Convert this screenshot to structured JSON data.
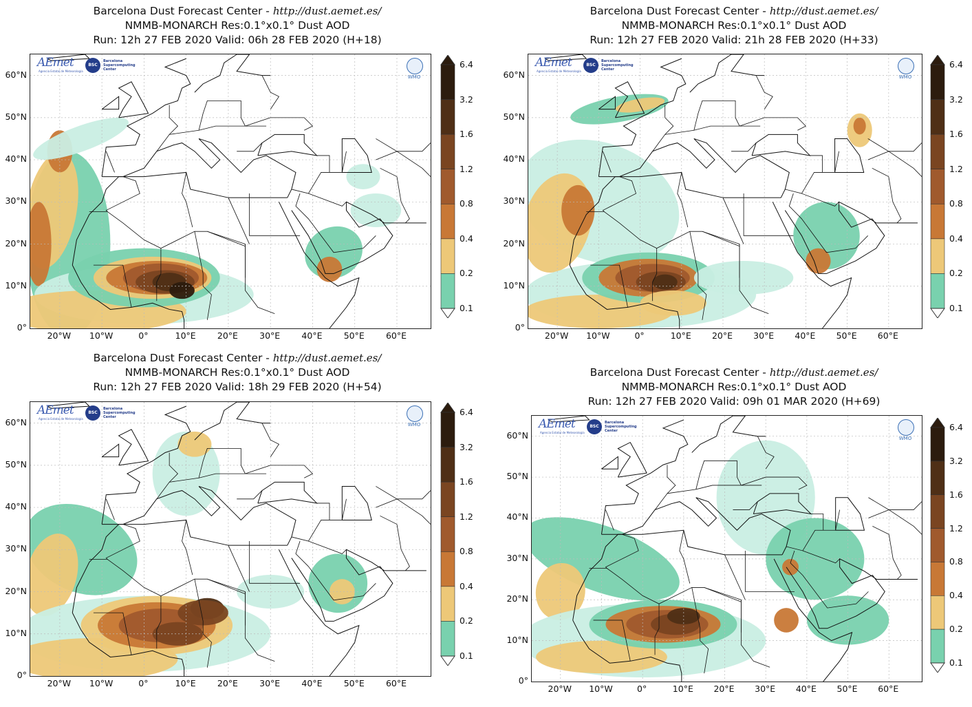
{
  "colors": {
    "c01": "#c9eee3",
    "c02": "#79d1ae",
    "c04": "#edc878",
    "c08": "#c87836",
    "c12": "#a05a2d",
    "c16": "#7a4521",
    "c32": "#4f2f16",
    "c64": "#2c1c0e",
    "land_line": "#111111",
    "grid": "#bbbbbb"
  },
  "common": {
    "center": "Barcelona Dust Forecast Center - ",
    "url": "http://dust.aemet.es/",
    "model": "NMMB-MONARCH   Res:0.1°x0.1°   Dust AOD",
    "logo_aemet": "AEmet",
    "logo_aemet_sub": "Agencia Estatal de Meteorología",
    "logo_bsc_badge": "BSC",
    "logo_bsc_text": [
      "Barcelona",
      "Supercomputing",
      "Center"
    ],
    "logo_wmo": "WMO",
    "lat_ticks": [
      "60°N",
      "50°N",
      "40°N",
      "30°N",
      "20°N",
      "10°N",
      "0°"
    ],
    "lon_ticks": [
      "20°W",
      "10°W",
      "0°",
      "10°E",
      "20°E",
      "30°E",
      "40°E",
      "50°E",
      "60°E"
    ],
    "colorbar_labels": [
      "6.4",
      "3.2",
      "1.6",
      "1.2",
      "0.8",
      "0.4",
      "0.2",
      "0.1"
    ]
  },
  "panels": [
    {
      "run_valid": "Run: 12h 27 FEB 2020   Valid: 06h 28 FEB 2020 (H+18)"
    },
    {
      "run_valid": "Run: 12h 27 FEB 2020   Valid: 21h 28 FEB 2020 (H+33)"
    },
    {
      "run_valid": "Run: 12h 27 FEB 2020   Valid: 18h 29 FEB 2020 (H+54)"
    },
    {
      "run_valid": "Run: 12h 27 FEB 2020   Valid: 09h 01 MAR 2020 (H+69)"
    }
  ]
}
